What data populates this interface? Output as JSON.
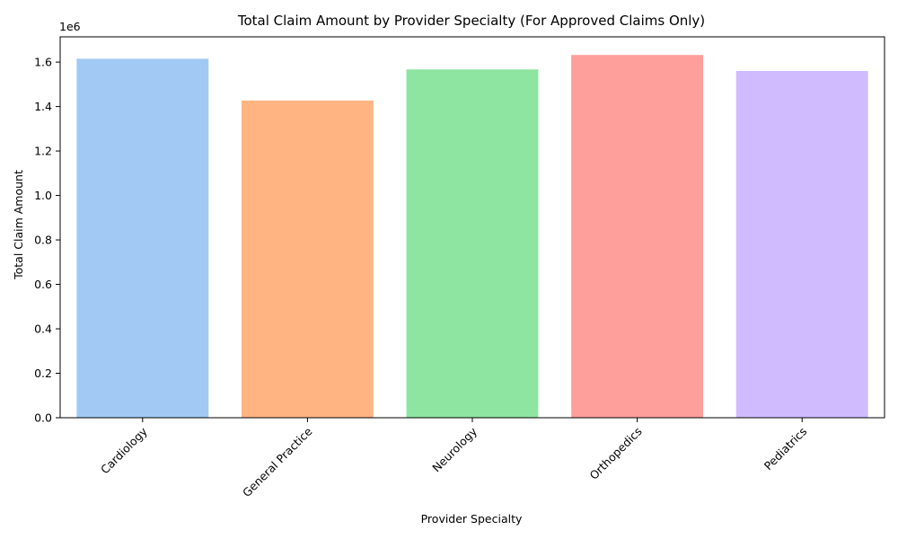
{
  "chart_data": {
    "type": "bar",
    "title": "Total Claim Amount by Provider Specialty (For Approved Claims Only)",
    "xlabel": "Provider Specialty",
    "ylabel": "Total Claim Amount",
    "y_offset_label": "1e6",
    "categories": [
      "Cardiology",
      "General Practice",
      "Neurology",
      "Orthopedics",
      "Pediatrics"
    ],
    "values": [
      1615000,
      1427000,
      1567000,
      1632000,
      1560000
    ],
    "colors": [
      "#a1c9f4",
      "#ffb482",
      "#8de5a1",
      "#ff9f9b",
      "#d0bbff"
    ],
    "ylim": [
      0,
      1713600
    ],
    "yticks": [
      0,
      200000,
      400000,
      600000,
      800000,
      1000000,
      1200000,
      1400000,
      1600000
    ],
    "ytick_labels": [
      "0.0",
      "0.2",
      "0.4",
      "0.6",
      "0.8",
      "1.0",
      "1.2",
      "1.4",
      "1.6"
    ],
    "grid": false,
    "legend": "none"
  }
}
